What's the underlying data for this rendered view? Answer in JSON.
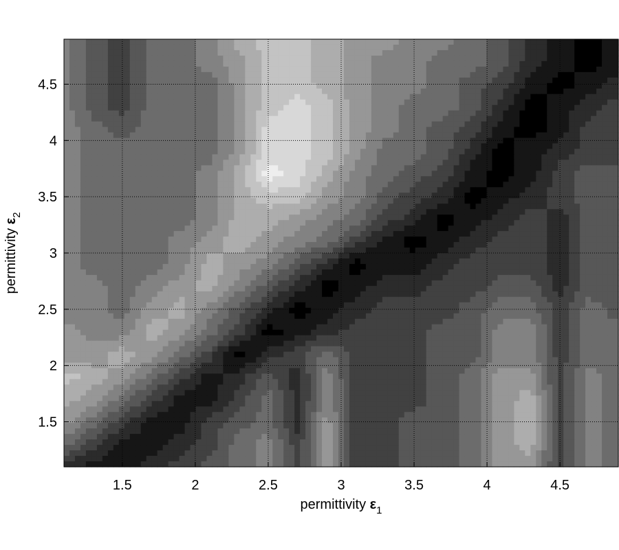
{
  "chart_data": {
    "type": "heatmap",
    "subtype": "filled-contour",
    "colormap": "gray",
    "xlabel": "permittivity ",
    "xlabel_symbol": "ε",
    "xlabel_subscript": "1",
    "ylabel": "permittivity ",
    "ylabel_symbol": "ε",
    "ylabel_subscript": "2",
    "xlim": [
      1.1,
      4.9
    ],
    "ylim": [
      1.1,
      4.9
    ],
    "xticks": [
      "1.5",
      "2",
      "2.5",
      "3",
      "3.5",
      "4",
      "4.5"
    ],
    "yticks": [
      "1.5",
      "2",
      "2.5",
      "3",
      "3.5",
      "4",
      "4.5"
    ],
    "grid": true,
    "levels": 12,
    "x": [
      1.1,
      1.3,
      1.5,
      1.7,
      1.9,
      2.1,
      2.3,
      2.5,
      2.7,
      2.9,
      3.1,
      3.3,
      3.5,
      3.7,
      3.9,
      4.1,
      4.3,
      4.5,
      4.7,
      4.9
    ],
    "y": [
      4.9,
      4.7,
      4.5,
      4.3,
      4.1,
      3.9,
      3.7,
      3.5,
      3.3,
      3.1,
      2.9,
      2.7,
      2.5,
      2.3,
      2.1,
      1.9,
      1.7,
      1.5,
      1.3,
      1.1
    ],
    "z": [
      [
        6,
        4,
        3,
        5,
        5,
        6,
        8,
        9,
        9,
        8,
        7,
        7,
        6,
        6,
        5,
        4,
        2,
        1,
        0,
        1
      ],
      [
        6,
        4,
        3,
        5,
        5,
        6,
        7,
        9,
        9,
        8,
        7,
        6,
        6,
        5,
        5,
        4,
        2,
        1,
        0,
        1
      ],
      [
        6,
        4,
        3,
        5,
        5,
        5,
        7,
        9,
        9,
        8,
        7,
        6,
        6,
        5,
        4,
        3,
        1,
        0,
        1,
        2
      ],
      [
        6,
        4,
        3,
        5,
        5,
        5,
        7,
        9,
        10,
        9,
        7,
        6,
        5,
        5,
        4,
        2,
        0,
        1,
        2,
        3
      ],
      [
        6,
        5,
        4,
        5,
        5,
        5,
        7,
        10,
        10,
        9,
        7,
        6,
        5,
        4,
        3,
        1,
        0,
        1,
        3,
        3
      ],
      [
        6,
        5,
        5,
        5,
        5,
        5,
        7,
        10,
        10,
        9,
        7,
        5,
        5,
        4,
        2,
        0,
        1,
        2,
        3,
        3
      ],
      [
        6,
        5,
        5,
        5,
        5,
        6,
        8,
        11,
        10,
        8,
        6,
        5,
        4,
        3,
        1,
        0,
        1,
        3,
        4,
        4
      ],
      [
        6,
        5,
        5,
        5,
        5,
        6,
        8,
        9,
        9,
        7,
        6,
        4,
        3,
        2,
        0,
        1,
        2,
        3,
        4,
        4
      ],
      [
        6,
        5,
        5,
        5,
        5,
        6,
        8,
        8,
        7,
        6,
        5,
        3,
        2,
        0,
        1,
        2,
        3,
        2,
        4,
        4
      ],
      [
        6,
        5,
        5,
        5,
        6,
        7,
        8,
        7,
        6,
        5,
        3,
        1,
        0,
        1,
        2,
        3,
        3,
        2,
        4,
        4
      ],
      [
        6,
        5,
        5,
        5,
        6,
        8,
        7,
        6,
        4,
        2,
        0,
        1,
        1,
        2,
        3,
        3,
        3,
        2,
        4,
        4
      ],
      [
        6,
        6,
        5,
        6,
        7,
        8,
        6,
        4,
        2,
        0,
        1,
        2,
        2,
        3,
        3,
        4,
        4,
        2,
        4,
        4
      ],
      [
        6,
        6,
        5,
        7,
        8,
        6,
        4,
        2,
        0,
        1,
        2,
        3,
        3,
        3,
        4,
        5,
        5,
        3,
        5,
        4
      ],
      [
        7,
        6,
        6,
        8,
        7,
        5,
        3,
        0,
        1,
        2,
        3,
        3,
        3,
        4,
        4,
        6,
        6,
        3,
        5,
        5
      ],
      [
        7,
        7,
        8,
        7,
        5,
        3,
        0,
        2,
        3,
        5,
        3,
        3,
        3,
        4,
        4,
        6,
        6,
        3,
        5,
        5
      ],
      [
        9,
        8,
        7,
        5,
        3,
        1,
        2,
        4,
        2,
        6,
        3,
        3,
        3,
        4,
        5,
        7,
        7,
        3,
        6,
        5
      ],
      [
        8,
        7,
        5,
        3,
        1,
        1,
        3,
        5,
        2,
        6,
        3,
        3,
        3,
        4,
        5,
        7,
        8,
        3,
        6,
        5
      ],
      [
        7,
        5,
        3,
        1,
        1,
        3,
        4,
        5,
        2,
        7,
        3,
        3,
        4,
        4,
        5,
        7,
        8,
        3,
        6,
        5
      ],
      [
        5,
        3,
        1,
        1,
        2,
        3,
        5,
        6,
        3,
        7,
        3,
        3,
        4,
        4,
        5,
        7,
        8,
        3,
        6,
        5
      ],
      [
        2,
        1,
        1,
        2,
        3,
        4,
        5,
        6,
        3,
        7,
        3,
        3,
        4,
        4,
        5,
        7,
        7,
        3,
        6,
        5
      ]
    ]
  }
}
